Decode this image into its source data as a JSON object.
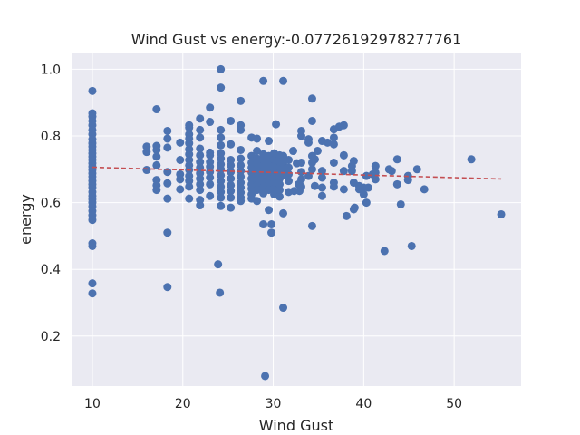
{
  "chart_data": {
    "type": "scatter",
    "title": "Wind Gust vs energy:-0.07726192978277761",
    "xlabel": "Wind Gust",
    "ylabel": "energy",
    "xlim": [
      7.8,
      57.4
    ],
    "ylim": [
      0.05,
      1.05
    ],
    "xticks": [
      10,
      20,
      30,
      40,
      50
    ],
    "yticks": [
      0.2,
      0.4,
      0.6,
      0.8,
      1.0
    ],
    "xtick_labels": [
      "10",
      "20",
      "30",
      "40",
      "50"
    ],
    "ytick_labels": [
      "0.2",
      "0.4",
      "0.6",
      "0.8",
      "1.0"
    ],
    "grid": true,
    "colors": {
      "background": "#eaeaf2",
      "grid": "#ffffff",
      "points": "#4c72b0",
      "trend": "#c44e52"
    },
    "trendline": {
      "x": [
        10,
        55.2
      ],
      "y": [
        0.706,
        0.671
      ]
    },
    "points": [
      [
        10,
        0.935
      ],
      [
        10,
        0.868
      ],
      [
        10,
        0.858
      ],
      [
        10,
        0.845
      ],
      [
        10,
        0.832
      ],
      [
        10,
        0.818
      ],
      [
        10,
        0.805
      ],
      [
        10,
        0.79
      ],
      [
        10,
        0.778
      ],
      [
        10,
        0.768
      ],
      [
        10,
        0.758
      ],
      [
        10,
        0.748
      ],
      [
        10,
        0.738
      ],
      [
        10,
        0.728
      ],
      [
        10,
        0.718
      ],
      [
        10,
        0.708
      ],
      [
        10,
        0.698
      ],
      [
        10,
        0.688
      ],
      [
        10,
        0.678
      ],
      [
        10,
        0.665
      ],
      [
        10,
        0.655
      ],
      [
        10,
        0.645
      ],
      [
        10,
        0.632
      ],
      [
        10,
        0.62
      ],
      [
        10,
        0.61
      ],
      [
        10,
        0.6
      ],
      [
        10,
        0.588
      ],
      [
        10,
        0.575
      ],
      [
        10,
        0.562
      ],
      [
        10,
        0.548
      ],
      [
        10,
        0.478
      ],
      [
        10,
        0.47
      ],
      [
        10,
        0.358
      ],
      [
        10,
        0.328
      ],
      [
        16,
        0.768
      ],
      [
        16,
        0.752
      ],
      [
        16,
        0.698
      ],
      [
        17.1,
        0.88
      ],
      [
        17.1,
        0.77
      ],
      [
        17.1,
        0.758
      ],
      [
        17.1,
        0.738
      ],
      [
        17.1,
        0.712
      ],
      [
        17.1,
        0.668
      ],
      [
        17.1,
        0.652
      ],
      [
        17.1,
        0.638
      ],
      [
        18.3,
        0.815
      ],
      [
        18.3,
        0.792
      ],
      [
        18.3,
        0.765
      ],
      [
        18.3,
        0.692
      ],
      [
        18.3,
        0.658
      ],
      [
        18.3,
        0.612
      ],
      [
        18.3,
        0.51
      ],
      [
        18.3,
        0.347
      ],
      [
        19.7,
        0.78
      ],
      [
        19.7,
        0.728
      ],
      [
        19.7,
        0.685
      ],
      [
        19.7,
        0.67
      ],
      [
        19.7,
        0.64
      ],
      [
        20.7,
        0.832
      ],
      [
        20.7,
        0.825
      ],
      [
        20.7,
        0.805
      ],
      [
        20.7,
        0.792
      ],
      [
        20.7,
        0.778
      ],
      [
        20.7,
        0.76
      ],
      [
        20.7,
        0.745
      ],
      [
        20.7,
        0.728
      ],
      [
        20.7,
        0.712
      ],
      [
        20.7,
        0.698
      ],
      [
        20.7,
        0.68
      ],
      [
        20.7,
        0.665
      ],
      [
        20.7,
        0.648
      ],
      [
        20.7,
        0.612
      ],
      [
        21.9,
        0.852
      ],
      [
        21.9,
        0.818
      ],
      [
        21.9,
        0.795
      ],
      [
        21.9,
        0.762
      ],
      [
        21.9,
        0.742
      ],
      [
        21.9,
        0.722
      ],
      [
        21.9,
        0.705
      ],
      [
        21.9,
        0.688
      ],
      [
        21.9,
        0.672
      ],
      [
        21.9,
        0.655
      ],
      [
        21.9,
        0.638
      ],
      [
        21.9,
        0.608
      ],
      [
        21.9,
        0.592
      ],
      [
        23,
        0.885
      ],
      [
        23,
        0.842
      ],
      [
        23,
        0.75
      ],
      [
        23,
        0.742
      ],
      [
        23,
        0.722
      ],
      [
        23,
        0.708
      ],
      [
        23,
        0.692
      ],
      [
        23,
        0.675
      ],
      [
        23,
        0.655
      ],
      [
        23,
        0.62
      ],
      [
        24.2,
        1.0
      ],
      [
        24.2,
        0.945
      ],
      [
        24.2,
        0.818
      ],
      [
        24.2,
        0.795
      ],
      [
        24.2,
        0.772
      ],
      [
        24.2,
        0.748
      ],
      [
        24.2,
        0.732
      ],
      [
        24.2,
        0.715
      ],
      [
        24.2,
        0.7
      ],
      [
        24.2,
        0.682
      ],
      [
        24.2,
        0.665
      ],
      [
        24.2,
        0.648
      ],
      [
        24.2,
        0.632
      ],
      [
        24.2,
        0.615
      ],
      [
        24.2,
        0.59
      ],
      [
        23.9,
        0.415
      ],
      [
        24.1,
        0.33
      ],
      [
        25.3,
        0.845
      ],
      [
        25.3,
        0.775
      ],
      [
        25.3,
        0.728
      ],
      [
        25.3,
        0.712
      ],
      [
        25.3,
        0.692
      ],
      [
        25.3,
        0.672
      ],
      [
        25.3,
        0.652
      ],
      [
        25.3,
        0.635
      ],
      [
        25.3,
        0.615
      ],
      [
        25.3,
        0.585
      ],
      [
        26.4,
        0.905
      ],
      [
        26.4,
        0.832
      ],
      [
        26.4,
        0.818
      ],
      [
        26.4,
        0.758
      ],
      [
        26.4,
        0.732
      ],
      [
        26.4,
        0.712
      ],
      [
        26.4,
        0.695
      ],
      [
        26.4,
        0.678
      ],
      [
        26.4,
        0.66
      ],
      [
        26.4,
        0.645
      ],
      [
        26.4,
        0.63
      ],
      [
        26.4,
        0.615
      ],
      [
        26.4,
        0.605
      ],
      [
        27.6,
        0.795
      ],
      [
        27.6,
        0.74
      ],
      [
        27.6,
        0.72
      ],
      [
        27.6,
        0.705
      ],
      [
        27.6,
        0.69
      ],
      [
        27.6,
        0.672
      ],
      [
        27.6,
        0.655
      ],
      [
        27.6,
        0.642
      ],
      [
        27.6,
        0.625
      ],
      [
        27.6,
        0.612
      ],
      [
        28.2,
        0.792
      ],
      [
        28.2,
        0.755
      ],
      [
        28.2,
        0.732
      ],
      [
        28.2,
        0.718
      ],
      [
        28.2,
        0.7
      ],
      [
        28.2,
        0.685
      ],
      [
        28.2,
        0.668
      ],
      [
        28.2,
        0.652
      ],
      [
        28.2,
        0.638
      ],
      [
        28.2,
        0.605
      ],
      [
        28.9,
        0.965
      ],
      [
        28.9,
        0.745
      ],
      [
        28.9,
        0.728
      ],
      [
        28.9,
        0.712
      ],
      [
        28.9,
        0.695
      ],
      [
        28.9,
        0.678
      ],
      [
        28.9,
        0.662
      ],
      [
        28.9,
        0.645
      ],
      [
        28.9,
        0.628
      ],
      [
        28.9,
        0.535
      ],
      [
        29.1,
        0.08
      ],
      [
        29.5,
        0.785
      ],
      [
        29.5,
        0.74
      ],
      [
        29.5,
        0.722
      ],
      [
        29.5,
        0.705
      ],
      [
        29.5,
        0.688
      ],
      [
        29.5,
        0.672
      ],
      [
        29.5,
        0.655
      ],
      [
        29.5,
        0.638
      ],
      [
        29.5,
        0.578
      ],
      [
        29.8,
        0.535
      ],
      [
        29.8,
        0.51
      ],
      [
        30.1,
        0.748
      ],
      [
        30.1,
        0.728
      ],
      [
        30.1,
        0.71
      ],
      [
        30.1,
        0.692
      ],
      [
        30.1,
        0.675
      ],
      [
        30.1,
        0.658
      ],
      [
        30.1,
        0.642
      ],
      [
        30.1,
        0.625
      ],
      [
        30.3,
        0.835
      ],
      [
        30.7,
        0.742
      ],
      [
        30.7,
        0.722
      ],
      [
        30.7,
        0.705
      ],
      [
        30.7,
        0.688
      ],
      [
        30.7,
        0.672
      ],
      [
        30.7,
        0.655
      ],
      [
        30.7,
        0.638
      ],
      [
        30.7,
        0.618
      ],
      [
        31.1,
        0.965
      ],
      [
        31.1,
        0.74
      ],
      [
        31.1,
        0.718
      ],
      [
        31.1,
        0.7
      ],
      [
        31.1,
        0.682
      ],
      [
        31.1,
        0.568
      ],
      [
        31.1,
        0.285
      ],
      [
        31.7,
        0.728
      ],
      [
        31.7,
        0.705
      ],
      [
        31.7,
        0.685
      ],
      [
        31.7,
        0.665
      ],
      [
        31.7,
        0.632
      ],
      [
        32.2,
        0.755
      ],
      [
        32.3,
        0.635
      ],
      [
        32.6,
        0.718
      ],
      [
        32.8,
        0.655
      ],
      [
        32.9,
        0.635
      ],
      [
        33.1,
        0.815
      ],
      [
        33.1,
        0.8
      ],
      [
        33.1,
        0.72
      ],
      [
        33.1,
        0.692
      ],
      [
        33.1,
        0.67
      ],
      [
        33.1,
        0.648
      ],
      [
        33.9,
        0.79
      ],
      [
        33.9,
        0.78
      ],
      [
        33.9,
        0.68
      ],
      [
        34.3,
        0.912
      ],
      [
        34.3,
        0.845
      ],
      [
        34.3,
        0.74
      ],
      [
        34.3,
        0.72
      ],
      [
        34.3,
        0.7
      ],
      [
        34.3,
        0.53
      ],
      [
        34.6,
        0.73
      ],
      [
        34.6,
        0.65
      ],
      [
        34.9,
        0.755
      ],
      [
        35.4,
        0.785
      ],
      [
        35.4,
        0.695
      ],
      [
        35.4,
        0.675
      ],
      [
        35.4,
        0.645
      ],
      [
        35.4,
        0.62
      ],
      [
        36,
        0.78
      ],
      [
        36.7,
        0.82
      ],
      [
        36.7,
        0.795
      ],
      [
        36.7,
        0.775
      ],
      [
        36.7,
        0.72
      ],
      [
        36.7,
        0.66
      ],
      [
        36.7,
        0.648
      ],
      [
        37.3,
        0.828
      ],
      [
        37.8,
        0.832
      ],
      [
        37.8,
        0.742
      ],
      [
        37.8,
        0.695
      ],
      [
        37.8,
        0.64
      ],
      [
        38.1,
        0.56
      ],
      [
        38.7,
        0.71
      ],
      [
        38.7,
        0.695
      ],
      [
        38.9,
        0.725
      ],
      [
        38.9,
        0.66
      ],
      [
        38.9,
        0.58
      ],
      [
        39,
        0.585
      ],
      [
        39.5,
        0.65
      ],
      [
        39.5,
        0.64
      ],
      [
        40,
        0.645
      ],
      [
        40,
        0.625
      ],
      [
        40.3,
        0.68
      ],
      [
        40.3,
        0.6
      ],
      [
        40.5,
        0.645
      ],
      [
        41,
        0.685
      ],
      [
        41.3,
        0.71
      ],
      [
        41.3,
        0.69
      ],
      [
        41.3,
        0.67
      ],
      [
        42.3,
        0.455
      ],
      [
        42.8,
        0.7
      ],
      [
        43.1,
        0.695
      ],
      [
        43.7,
        0.73
      ],
      [
        43.7,
        0.655
      ],
      [
        44.1,
        0.595
      ],
      [
        44.9,
        0.68
      ],
      [
        44.9,
        0.668
      ],
      [
        45.3,
        0.47
      ],
      [
        45.9,
        0.7
      ],
      [
        46.7,
        0.64
      ],
      [
        51.9,
        0.73
      ],
      [
        55.2,
        0.565
      ]
    ]
  }
}
